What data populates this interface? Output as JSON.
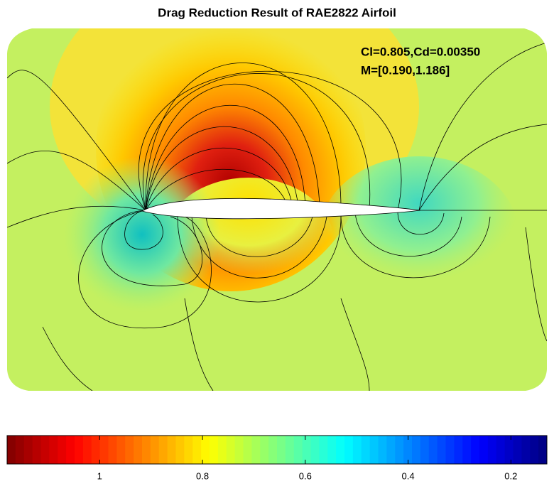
{
  "chart_data": {
    "type": "contour",
    "title": "Drag Reduction Result of RAE2822 Airfoil",
    "annotations": [
      "Cl=0.805,Cd=0.00350",
      "M=[0.190,1.186]"
    ],
    "colorbar": {
      "colormap": "jet",
      "reversed": true,
      "xlim": [
        1.18,
        0.13
      ],
      "xticks": [
        1,
        0.8,
        0.6,
        0.4,
        0.2
      ]
    }
  }
}
